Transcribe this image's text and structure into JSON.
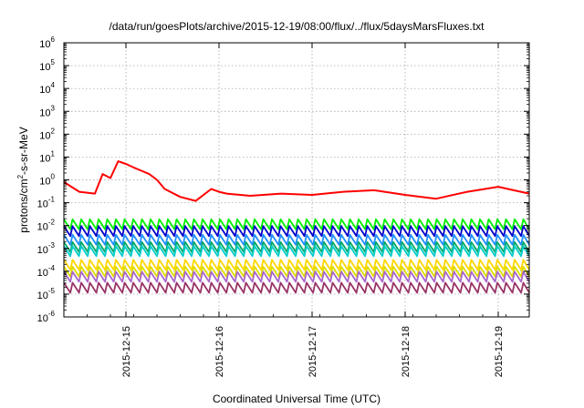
{
  "chart_data": {
    "type": "line",
    "title": "/data/run/goesPlots/archive/2015-12-19/08:00/flux/../flux/5daysMarsFluxes.txt",
    "xlabel": "Coordinated Universal Time (UTC)",
    "ylabel": "protons/cm²-s-sr-MeV",
    "ylabel_parts": {
      "prefix": "protons/cm",
      "sup": "2",
      "suffix": "-s-sr-MeV"
    },
    "y_scale": "log",
    "ylim": [
      1e-06,
      1000000.0
    ],
    "y_ticks": [
      {
        "base": "10",
        "exp": "6"
      },
      {
        "base": "10",
        "exp": "5"
      },
      {
        "base": "10",
        "exp": "4"
      },
      {
        "base": "10",
        "exp": "3"
      },
      {
        "base": "10",
        "exp": "2"
      },
      {
        "base": "10",
        "exp": "1"
      },
      {
        "base": "10",
        "exp": "0"
      },
      {
        "base": "10",
        "exp": "-1"
      },
      {
        "base": "10",
        "exp": "-2"
      },
      {
        "base": "10",
        "exp": "-3"
      },
      {
        "base": "10",
        "exp": "-4"
      },
      {
        "base": "10",
        "exp": "-5"
      },
      {
        "base": "10",
        "exp": "-6"
      }
    ],
    "xlim": [
      "2015-12-14T08:00",
      "2015-12-19T08:00"
    ],
    "x_ticks": [
      "2015-12-15",
      "2015-12-16",
      "2015-12-17",
      "2015-12-18",
      "2015-12-19"
    ],
    "grid": true,
    "legend": "none",
    "series": [
      {
        "color": "#ff0000",
        "x": [
          "2015-12-14T08:00",
          "2015-12-14T12:00",
          "2015-12-14T16:00",
          "2015-12-14T18:00",
          "2015-12-14T20:00",
          "2015-12-14T22:00",
          "2015-12-15T00:00",
          "2015-12-15T02:00",
          "2015-12-15T04:00",
          "2015-12-15T06:00",
          "2015-12-15T08:00",
          "2015-12-15T10:00",
          "2015-12-15T14:00",
          "2015-12-15T18:00",
          "2015-12-15T22:00",
          "2015-12-16T00:00",
          "2015-12-16T02:00",
          "2015-12-16T08:00",
          "2015-12-16T16:00",
          "2015-12-17T00:00",
          "2015-12-17T08:00",
          "2015-12-17T16:00",
          "2015-12-18T00:00",
          "2015-12-18T08:00",
          "2015-12-18T16:00",
          "2015-12-19T00:00",
          "2015-12-19T08:00"
        ],
        "y": [
          0.8,
          0.3,
          0.25,
          1.8,
          1.2,
          6.5,
          5.0,
          3.5,
          2.5,
          1.8,
          1.0,
          0.4,
          0.18,
          0.12,
          0.4,
          0.3,
          0.25,
          0.2,
          0.25,
          0.22,
          0.3,
          0.35,
          0.22,
          0.15,
          0.3,
          0.5,
          0.25
        ]
      },
      {
        "color": "#00ee00",
        "x": [
          "2015-12-14T08:00",
          "2015-12-19T08:00"
        ],
        "y": [
          0.012,
          0.013
        ]
      },
      {
        "color": "#0000cc",
        "x": [
          "2015-12-14T08:00",
          "2015-12-19T08:00"
        ],
        "y": [
          0.006,
          0.006
        ]
      },
      {
        "color": "#1e90ff",
        "x": [
          "2015-12-14T08:00",
          "2015-12-19T08:00"
        ],
        "y": [
          0.0025,
          0.0025
        ]
      },
      {
        "color": "#00aa66",
        "x": [
          "2015-12-14T08:00",
          "2015-12-19T08:00"
        ],
        "y": [
          0.0012,
          0.0012
        ]
      },
      {
        "color": "#00cccc",
        "x": [
          "2015-12-14T08:00",
          "2015-12-19T08:00"
        ],
        "y": [
          0.0008,
          0.0008
        ]
      },
      {
        "color": "#ffd700",
        "x": [
          "2015-12-14T08:00",
          "2015-12-19T08:00"
        ],
        "y": [
          0.0002,
          0.0002
        ]
      },
      {
        "color": "#dddd00",
        "x": [
          "2015-12-14T08:00",
          "2015-12-19T08:00"
        ],
        "y": [
          0.0001,
          0.0001
        ]
      },
      {
        "color": "#aa66cc",
        "x": [
          "2015-12-14T08:00",
          "2015-12-19T08:00"
        ],
        "y": [
          6e-05,
          6e-05
        ]
      },
      {
        "color": "#993366",
        "x": [
          "2015-12-14T08:00",
          "2015-12-19T08:00"
        ],
        "y": [
          2e-05,
          2e-05
        ]
      }
    ]
  }
}
